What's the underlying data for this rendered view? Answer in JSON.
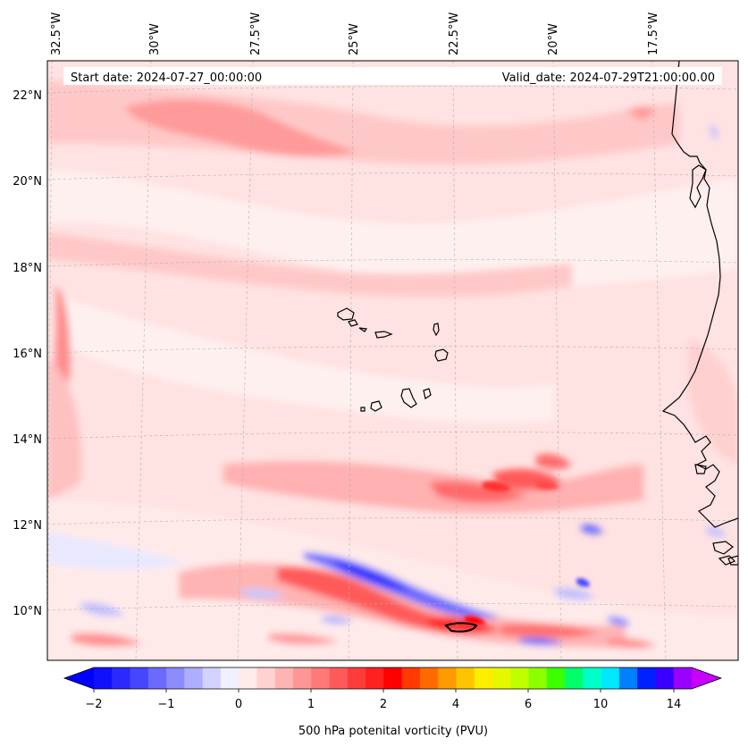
{
  "map": {
    "start_label": "Start date: 2024-07-27_00:00:00",
    "valid_label": "Valid_date: 2024-07-29T21:00:00.00",
    "lon_labels": [
      "32.5°W",
      "30°W",
      "27.5°W",
      "25°W",
      "22.5°W",
      "20°W",
      "17.5°W"
    ],
    "lat_labels": [
      "22°N",
      "20°N",
      "18°N",
      "16°N",
      "14°N",
      "12°N",
      "10°N"
    ]
  },
  "colorbar": {
    "title": "500 hPa potenital vorticity (PVU)",
    "tick_labels": [
      "−2",
      "−1",
      "0",
      "1",
      "2",
      "4",
      "6",
      "10",
      "14"
    ],
    "colors": [
      "#1010ff",
      "#2a2aff",
      "#4646ff",
      "#6a6aff",
      "#8c8cff",
      "#aeaeff",
      "#d2d2ff",
      "#f0f0ff",
      "#ffeaea",
      "#ffd2d2",
      "#ffb4b4",
      "#ff9696",
      "#ff7878",
      "#ff5a5a",
      "#ff3c3c",
      "#ff2020",
      "#ff0000",
      "#ff3a00",
      "#ff6a00",
      "#ff9a00",
      "#ffc400",
      "#ffee00",
      "#e6f700",
      "#c0ff00",
      "#8cff00",
      "#3cff00",
      "#00ff6a",
      "#00ffc8",
      "#00e8ff",
      "#0080ff",
      "#0020ff",
      "#3a00ff",
      "#9a00ff"
    ],
    "under_color": "#0000ff",
    "over_color": "#c800ff"
  }
}
